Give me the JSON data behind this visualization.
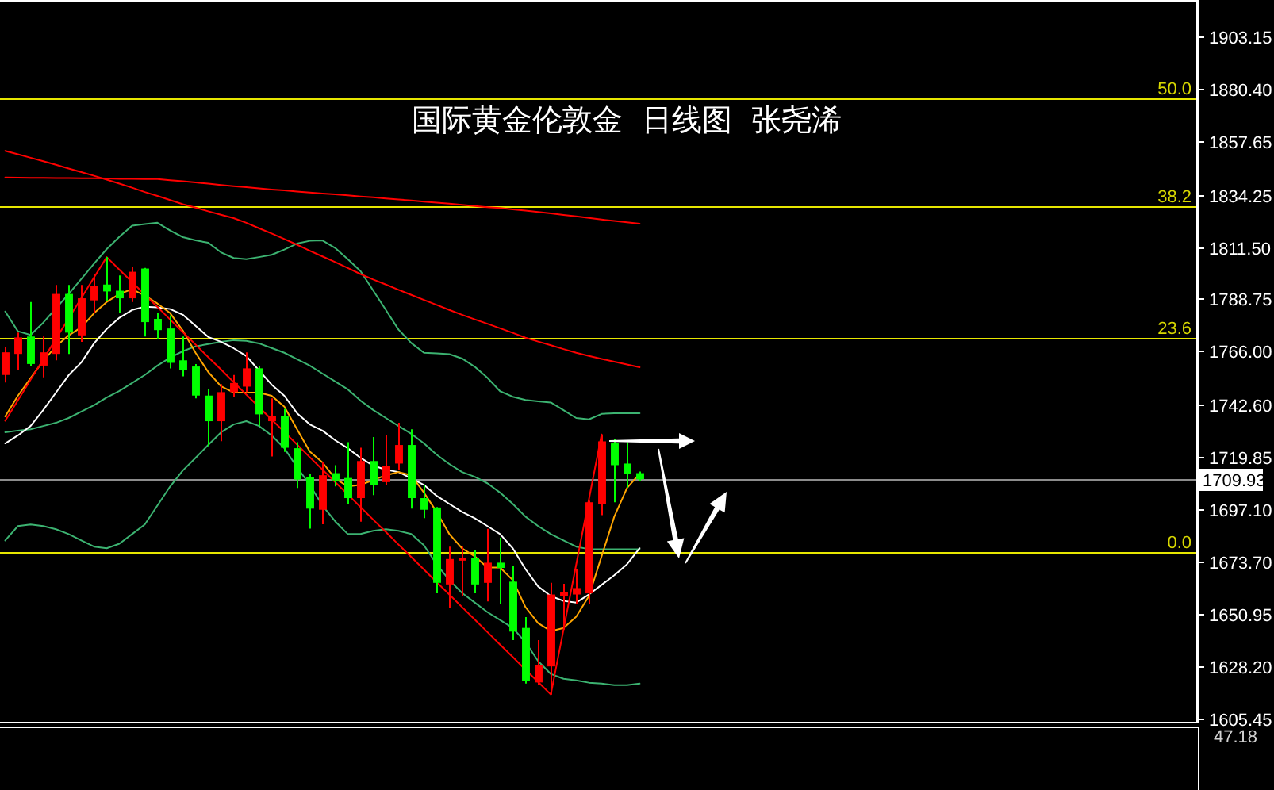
{
  "chart_data": [
    {
      "type": "candlestick",
      "title": "国际黄金伦敦金  日线图  张尧浠",
      "categories": [
        null,
        null,
        null,
        null,
        null,
        null,
        null,
        null,
        null,
        null,
        null,
        null,
        null,
        null,
        null,
        null,
        null,
        null,
        null,
        null,
        null,
        null,
        null,
        null,
        null,
        null,
        null,
        null,
        null,
        null,
        null,
        null,
        null,
        null,
        null,
        null,
        null,
        null,
        null,
        null,
        null,
        null,
        null,
        null,
        null,
        null,
        null,
        null,
        null,
        null,
        null
      ],
      "ohlc": [
        [
          1755.5,
          1767.7,
          1752.2,
          1765.4
        ],
        [
          1764.7,
          1774.0,
          1757.7,
          1771.9
        ],
        [
          1772.3,
          1787.4,
          1759.6,
          1760.3
        ],
        [
          1759.6,
          1772.3,
          1754.5,
          1765.4
        ],
        [
          1764.7,
          1794.8,
          1761.9,
          1790.9
        ],
        [
          1790.9,
          1794.8,
          1764.7,
          1774.0
        ],
        [
          1772.8,
          1794.8,
          1770.0,
          1789.0
        ],
        [
          1788.1,
          1799.4,
          1782.7,
          1794.3
        ],
        [
          1795.0,
          1807.0,
          1787.9,
          1792.0
        ],
        [
          1792.3,
          1799.0,
          1782.7,
          1789.0
        ],
        [
          1789.0,
          1802.5,
          1787.4,
          1800.6
        ],
        [
          1802.0,
          1802.3,
          1772.3,
          1778.6
        ],
        [
          1780.0,
          1782.7,
          1771.2,
          1775.1
        ],
        [
          1775.8,
          1781.6,
          1758.4,
          1760.8
        ],
        [
          1761.9,
          1772.3,
          1754.9,
          1757.7
        ],
        [
          1759.2,
          1760.3,
          1745.3,
          1746.5
        ],
        [
          1746.5,
          1749.2,
          1724.4,
          1735.3
        ],
        [
          1735.3,
          1751.5,
          1726.6,
          1748.0
        ],
        [
          1748.0,
          1755.5,
          1745.7,
          1752.0
        ],
        [
          1750.4,
          1765.4,
          1748.0,
          1758.4
        ],
        [
          1758.4,
          1759.6,
          1733.2,
          1738.3
        ],
        [
          1735.3,
          1745.3,
          1719.9,
          1737.4
        ],
        [
          1737.6,
          1740.7,
          1721.9,
          1723.7
        ],
        [
          1723.5,
          1726.1,
          1706.1,
          1709.8
        ],
        [
          1711.0,
          1712.2,
          1688.4,
          1697.1
        ],
        [
          1696.6,
          1717.5,
          1690.3,
          1711.7
        ],
        [
          1712.6,
          1716.1,
          1706.8,
          1709.4
        ],
        [
          1710.5,
          1726.1,
          1699.0,
          1701.7
        ],
        [
          1701.7,
          1723.7,
          1691.4,
          1717.9
        ],
        [
          1717.9,
          1728.4,
          1703.0,
          1707.5
        ],
        [
          1708.7,
          1729.1,
          1707.5,
          1715.6
        ],
        [
          1716.8,
          1734.6,
          1713.8,
          1724.9
        ],
        [
          1724.9,
          1731.8,
          1697.1,
          1701.7
        ],
        [
          1701.7,
          1707.5,
          1693.0,
          1696.6
        ],
        [
          1697.6,
          1697.8,
          1660.1,
          1664.7
        ],
        [
          1664.0,
          1680.5,
          1653.6,
          1675.1
        ],
        [
          1674.4,
          1680.5,
          1658.9,
          1675.6
        ],
        [
          1675.6,
          1679.1,
          1660.1,
          1664.0
        ],
        [
          1664.7,
          1688.3,
          1656.6,
          1673.5
        ],
        [
          1673.5,
          1684.4,
          1655.5,
          1671.2
        ],
        [
          1665.2,
          1672.1,
          1639.7,
          1643.4
        ],
        [
          1645.0,
          1649.7,
          1620.7,
          1621.9
        ],
        [
          1621.2,
          1639.7,
          1620.3,
          1628.9
        ],
        [
          1628.2,
          1664.7,
          1615.9,
          1659.6
        ],
        [
          1658.9,
          1664.3,
          1644.3,
          1660.5
        ],
        [
          1659.6,
          1670.5,
          1655.5,
          1662.4
        ],
        [
          1660.1,
          1700.6,
          1655.5,
          1699.9
        ],
        [
          1699.0,
          1729.5,
          1694.3,
          1726.5
        ],
        [
          1725.6,
          1727.7,
          1699.9,
          1716.1
        ],
        [
          1716.8,
          1726.1,
          1706.3,
          1712.2
        ],
        [
          1712.6,
          1713.3,
          1709.3,
          1709.93
        ]
      ],
      "colors": [
        "#ff0000",
        "#ff0000",
        "#00ff00",
        "#ff0000",
        "#ff0000",
        "#00ff00",
        "#ff0000",
        "#ff0000",
        "#00ff00",
        "#00ff00",
        "#ff0000",
        "#00ff00",
        "#00ff00",
        "#00ff00",
        "#00ff00",
        "#00ff00",
        "#00ff00",
        "#ff0000",
        "#ff0000",
        "#ff0000",
        "#00ff00",
        "#ff0000",
        "#00ff00",
        "#00ff00",
        "#00ff00",
        "#ff0000",
        "#00ff00",
        "#00ff00",
        "#ff0000",
        "#00ff00",
        "#ff0000",
        "#ff0000",
        "#00ff00",
        "#00ff00",
        "#00ff00",
        "#ff0000",
        "#ff0000",
        "#00ff00",
        "#ff0000",
        "#00ff00",
        "#00ff00",
        "#00ff00",
        "#ff0000",
        "#ff0000",
        "#ff0000",
        "#ff0000",
        "#ff0000",
        "#ff0000",
        "#00ff00",
        "#00ff00",
        "#00ff00"
      ],
      "ylim": [
        1604,
        1919.3
      ],
      "yticks": [
        1605.45,
        {
          "value": 1628.2,
          "label": "1628.20"
        },
        1650.95,
        {
          "value": 1673.7,
          "label": "1673.70"
        },
        {
          "value": 1697.1,
          "label": "1697.10"
        },
        1719.85,
        {
          "value": 1742.6,
          "label": "1742.60"
        },
        {
          "value": 1766.0,
          "label": "1766.00"
        },
        1788.75,
        {
          "value": 1811.5,
          "label": "1811.50"
        },
        1834.25,
        1857.65,
        {
          "value": 1880.4,
          "label": "1880.40"
        },
        1903.15
      ],
      "y2lim": [
        -18.6,
        60.8
      ],
      "y2ticks": [
        {
          "value": 0,
          "label": "0.0"
        },
        23.6,
        38.2,
        {
          "value": 50,
          "label": "50.0"
        }
      ],
      "series": [
        {
          "type": "line",
          "color": "#3cb371",
          "values": [
            1783.2,
            1774.6,
            1773.0,
            1778.4,
            1784.6,
            1790.9,
            1797.5,
            1804.1,
            1810.5,
            1815.9,
            1820.7,
            1821.4,
            1822.0,
            1818.6,
            1815.7,
            1814.3,
            1813.3,
            1809.1,
            1806.6,
            1806.1,
            1807.0,
            1808.0,
            1810.3,
            1812.9,
            1814.1,
            1814.3,
            1811.0,
            1806.1,
            1800.9,
            1792.4,
            1783.9,
            1775.3,
            1769.5,
            1765.2,
            1764.9,
            1764.6,
            1762.7,
            1759.1,
            1754.3,
            1748.4,
            1746.0,
            1744.6,
            1744.0,
            1743.5,
            1740.1,
            1736.7,
            1736.1,
            1738.5,
            1738.8,
            1738.8,
            1738.8
          ]
        },
        {
          "type": "line",
          "color": "#3cb371",
          "values": [
            1730.5,
            1731.2,
            1731.8,
            1733.2,
            1734.6,
            1736.7,
            1739.5,
            1742.3,
            1745.7,
            1748.5,
            1752.0,
            1755.5,
            1759.6,
            1763.1,
            1765.9,
            1768.0,
            1769.0,
            1770.0,
            1770.7,
            1770.4,
            1769.3,
            1767.3,
            1765.2,
            1762.4,
            1759.6,
            1756.1,
            1752.7,
            1749.2,
            1744.3,
            1740.2,
            1736.7,
            1733.2,
            1729.8,
            1725.6,
            1720.7,
            1716.6,
            1713.1,
            1711.0,
            1708.2,
            1704.1,
            1699.2,
            1693.6,
            1689.5,
            1686.0,
            1683.2,
            1680.5,
            1679.4,
            1679.4,
            1679.4,
            1679.4,
            1679.4
          ]
        },
        {
          "type": "line",
          "color": "#3cb371",
          "values": [
            1683.2,
            1689.5,
            1690.2,
            1689.5,
            1688.1,
            1686.0,
            1683.2,
            1680.5,
            1679.8,
            1681.8,
            1686.0,
            1690.2,
            1698.5,
            1706.8,
            1713.8,
            1719.3,
            1724.9,
            1730.4,
            1733.9,
            1735.3,
            1733.2,
            1729.1,
            1723.5,
            1715.2,
            1707.5,
            1698.5,
            1691.6,
            1686.0,
            1686.0,
            1687.4,
            1688.1,
            1687.4,
            1686.0,
            1681.1,
            1672.8,
            1665.9,
            1660.3,
            1656.1,
            1651.9,
            1648.5,
            1645.0,
            1638.8,
            1630.5,
            1624.9,
            1622.8,
            1622.1,
            1621.1,
            1620.7,
            1620.0,
            1620.0,
            1620.7
          ]
        },
        {
          "type": "line",
          "color": "#ff0000",
          "values": [
            1841.8,
            1841.7,
            1841.6,
            1841.6,
            1841.5,
            1841.5,
            1841.4,
            1841.4,
            1841.3,
            1841.2,
            1841.2,
            1841.1,
            1841.1,
            1840.6,
            1840.1,
            1839.6,
            1839.1,
            1838.5,
            1838.0,
            1837.5,
            1837.0,
            1836.5,
            1836.1,
            1835.6,
            1835.2,
            1834.8,
            1834.4,
            1834.0,
            1833.5,
            1833.1,
            1832.6,
            1832.2,
            1831.7,
            1831.2,
            1830.8,
            1830.3,
            1829.8,
            1829.3,
            1828.8,
            1828.4,
            1827.8,
            1827.3,
            1826.7,
            1826.1,
            1825.4,
            1824.8,
            1824.1,
            1823.4,
            1822.8,
            1822.2,
            1821.6
          ]
        },
        {
          "type": "line",
          "color": "#ff0000",
          "values": [
            1853.4,
            1851.9,
            1850.4,
            1848.9,
            1847.3,
            1845.7,
            1844.1,
            1842.5,
            1840.8,
            1839.1,
            1837.3,
            1835.4,
            1833.7,
            1831.9,
            1830.1,
            1828.6,
            1827.0,
            1825.5,
            1824.0,
            1822.0,
            1819.6,
            1817.3,
            1814.9,
            1812.4,
            1809.8,
            1807.3,
            1804.8,
            1802.2,
            1799.6,
            1797.2,
            1795.0,
            1792.7,
            1790.5,
            1788.3,
            1786.1,
            1783.9,
            1781.8,
            1779.8,
            1777.9,
            1775.9,
            1773.9,
            1771.8,
            1770.1,
            1768.5,
            1766.8,
            1765.2,
            1763.8,
            1762.5,
            1761.3,
            1760.1,
            1758.9
          ]
        },
        {
          "type": "line",
          "color": "#ffffff",
          "values": [
            1725.6,
            1729.1,
            1733.2,
            1740.2,
            1747.8,
            1755.4,
            1761.0,
            1769.3,
            1775.6,
            1780.5,
            1783.9,
            1785.3,
            1785.0,
            1784.3,
            1781.8,
            1777.0,
            1772.1,
            1770.0,
            1767.2,
            1763.8,
            1757.5,
            1751.3,
            1746.4,
            1738.8,
            1733.9,
            1731.2,
            1727.0,
            1723.5,
            1719.3,
            1715.9,
            1714.1,
            1713.1,
            1710.3,
            1707.5,
            1702.7,
            1699.2,
            1695.7,
            1692.9,
            1689.5,
            1686.0,
            1679.8,
            1670.7,
            1663.1,
            1658.9,
            1656.8,
            1656.1,
            1659.6,
            1663.8,
            1668.0,
            1672.8,
            1679.8
          ]
        },
        {
          "type": "line",
          "color": "#ffa500",
          "values": [
            1737.4,
            1746.4,
            1754.1,
            1761.7,
            1768.0,
            1772.8,
            1776.3,
            1782.5,
            1787.4,
            1790.9,
            1793.0,
            1790.2,
            1786.7,
            1782.5,
            1774.9,
            1765.2,
            1756.8,
            1750.6,
            1747.8,
            1747.8,
            1747.8,
            1746.4,
            1741.6,
            1731.8,
            1722.1,
            1717.3,
            1710.3,
            1706.8,
            1707.5,
            1709.6,
            1711.7,
            1713.1,
            1711.7,
            1704.1,
            1695.7,
            1686.0,
            1679.8,
            1676.3,
            1671.4,
            1671.4,
            1665.9,
            1654.1,
            1647.1,
            1643.6,
            1645.0,
            1649.9,
            1658.9,
            1676.3,
            1693.6,
            1706.1,
            1712.4
          ]
        },
        {
          "type": "line",
          "color": "#ff0000",
          "values": [
            1735.5,
            1744.4,
            1753.4,
            1762.3,
            1771.3,
            1780.2,
            1789.1,
            1798.1,
            1807.0,
            1801.5,
            1796.1,
            1790.6,
            1785.2,
            1779.7,
            1774.2,
            1768.8,
            1763.3,
            1757.9,
            1752.4,
            1746.9,
            1741.5,
            1736.0,
            1730.6,
            1725.1,
            1719.6,
            1714.2,
            1708.7,
            1703.3,
            1697.8,
            1692.3,
            1686.9,
            1681.4,
            1676.0,
            1670.5,
            1665.0,
            1659.6,
            1654.1,
            1648.7,
            1643.2,
            1637.7,
            1632.3,
            1626.8,
            1621.4,
            1615.9,
            1644.3,
            1672.7,
            1701.1,
            1729.5,
            null,
            null,
            null
          ]
        }
      ],
      "ref_lines": [
        {
          "axis": "y2",
          "value": 50,
          "color": "#e6e600"
        },
        {
          "axis": "y2",
          "value": 38.2,
          "color": "#e6e600"
        },
        {
          "axis": "y2",
          "value": 23.6,
          "color": "#e6e600"
        },
        {
          "axis": "y2",
          "value": 0,
          "color": "#e6e600"
        },
        {
          "axis": "y",
          "value": 1709.93,
          "label": "1709.93",
          "color": "#8c8c8c"
        }
      ]
    },
    {
      "type": "other",
      "annotations": [
        "47.18"
      ]
    }
  ]
}
